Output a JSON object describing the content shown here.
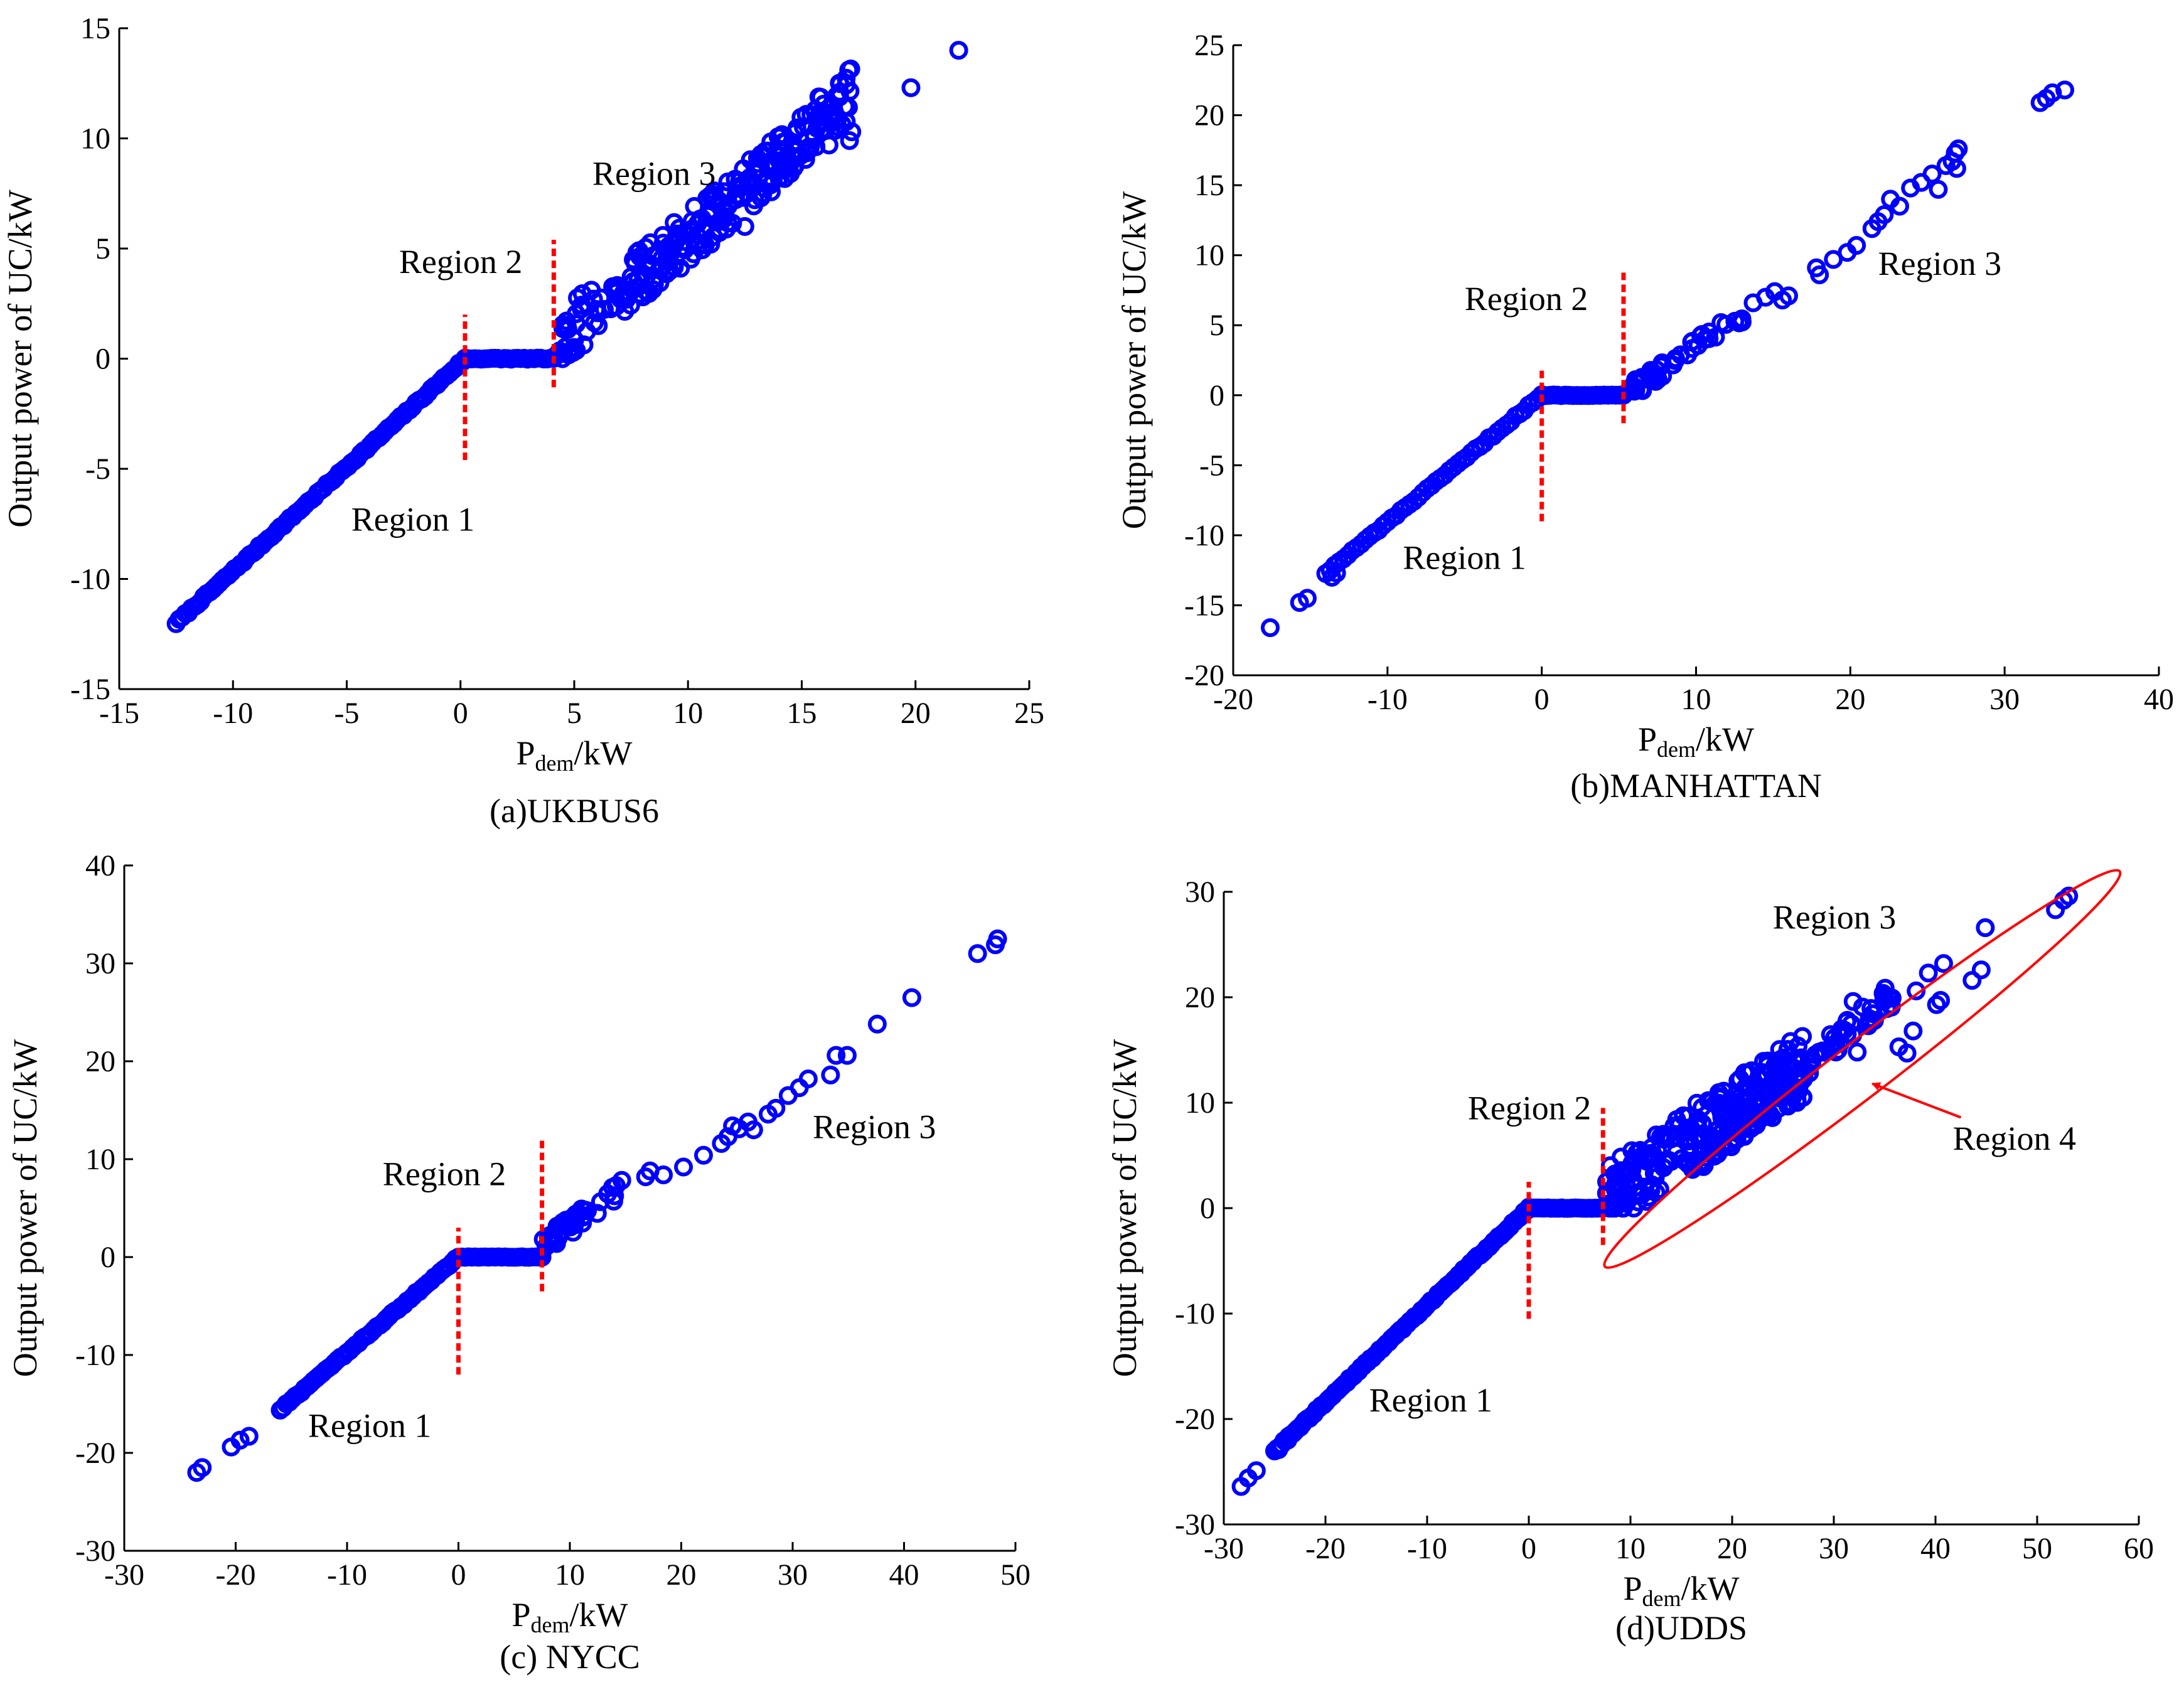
{
  "colors": {
    "marker": "#0000ff",
    "boundary": "#ff0000",
    "axis": "#000000",
    "background": "#ffffff"
  },
  "chart_data": [
    {
      "type": "scatter",
      "caption": "(a)UKBUS6",
      "xlabel_main": "P",
      "xlabel_sub": "dem",
      "xlabel_unit": "/kW",
      "ylabel": "Output power of UC/kW",
      "xlim": [
        -15,
        25
      ],
      "ylim": [
        -15,
        15
      ],
      "xticks": [
        -15,
        -10,
        -5,
        0,
        5,
        10,
        15,
        20,
        25
      ],
      "yticks": [
        -15,
        -10,
        -5,
        0,
        5,
        10,
        15
      ],
      "boundaries": [
        {
          "x": 0.2,
          "y0": -4.6,
          "y1": 2.0
        },
        {
          "x": 4.1,
          "y0": -1.3,
          "y1": 5.4
        }
      ],
      "regions": [
        {
          "label": "Region 1",
          "x": -4.8,
          "y": -7.3
        },
        {
          "label": "Region 2",
          "x": -2.7,
          "y": 4.4
        },
        {
          "label": "Region 3",
          "x": 5.8,
          "y": 8.4
        }
      ],
      "segments": [
        {
          "x0": -12.5,
          "y0": -12.0,
          "x1": 0.2,
          "y1": 0.0,
          "n": 95,
          "jitter": 0.12
        },
        {
          "x0": 0.2,
          "y0": 0.0,
          "x1": 4.1,
          "y1": 0.0,
          "n": 28,
          "jitter": 0.05
        }
      ],
      "clouds": [
        {
          "x0": 4.2,
          "x1": 17.2,
          "n": 260,
          "poly": [
            -2.0,
            0.65
          ],
          "curve": 0.01,
          "spread": 1.2,
          "seed": 11
        }
      ],
      "points": [
        [
          21.9,
          14.0
        ],
        [
          19.8,
          12.3
        ],
        [
          17.2,
          10.3
        ],
        [
          17.1,
          9.9
        ],
        [
          16.2,
          9.7
        ],
        [
          15.3,
          9.6
        ],
        [
          14.0,
          8.2
        ],
        [
          11.0,
          5.2
        ],
        [
          12.5,
          6.0
        ]
      ]
    },
    {
      "type": "scatter",
      "caption": "(b)MANHATTAN",
      "xlabel_main": "P",
      "xlabel_sub": "dem",
      "xlabel_unit": "/kW",
      "ylabel": "Output power of UC/kW",
      "xlim": [
        -20,
        40
      ],
      "ylim": [
        -20,
        25
      ],
      "xticks": [
        -20,
        -10,
        0,
        10,
        20,
        30,
        40
      ],
      "yticks": [
        -20,
        -15,
        -10,
        -5,
        0,
        5,
        10,
        15,
        20,
        25
      ],
      "boundaries": [
        {
          "x": 0.0,
          "y0": -9.0,
          "y1": 2.0
        },
        {
          "x": 5.3,
          "y0": -2.0,
          "y1": 9.0
        }
      ],
      "regions": [
        {
          "label": "Region 1",
          "x": -9.0,
          "y": -11.6
        },
        {
          "label": "Region 2",
          "x": -5.0,
          "y": 6.9
        },
        {
          "label": "Region 3",
          "x": 21.8,
          "y": 9.4
        }
      ],
      "segments": [
        {
          "x0": -14.0,
          "y0": -12.7,
          "x1": 0.0,
          "y1": 0.0,
          "n": 50,
          "jitter": 0.15
        },
        {
          "x0": 0.0,
          "y0": 0.0,
          "x1": 5.3,
          "y1": 0.0,
          "n": 22,
          "jitter": 0.05
        }
      ],
      "clouds": [
        {
          "x0": 5.5,
          "x1": 13.0,
          "n": 45,
          "poly": [
            -4.0,
            0.75
          ],
          "curve": 0.0,
          "spread": 0.6,
          "seed": 23
        }
      ],
      "points": [
        [
          -17.6,
          -16.6
        ],
        [
          -15.7,
          -14.8
        ],
        [
          -15.2,
          -14.5
        ],
        [
          -13.6,
          -13.0
        ],
        [
          -13.3,
          -12.7
        ],
        [
          13.7,
          6.6
        ],
        [
          14.5,
          7.0
        ],
        [
          15.1,
          7.4
        ],
        [
          15.6,
          6.8
        ],
        [
          16.0,
          7.1
        ],
        [
          17.8,
          9.1
        ],
        [
          18.0,
          8.6
        ],
        [
          18.9,
          9.7
        ],
        [
          19.8,
          10.2
        ],
        [
          20.4,
          10.7
        ],
        [
          21.4,
          11.9
        ],
        [
          21.8,
          12.4
        ],
        [
          22.2,
          12.9
        ],
        [
          22.6,
          14.0
        ],
        [
          23.2,
          13.5
        ],
        [
          23.9,
          14.8
        ],
        [
          24.6,
          15.2
        ],
        [
          25.3,
          15.8
        ],
        [
          25.7,
          14.7
        ],
        [
          26.2,
          16.4
        ],
        [
          26.6,
          16.7
        ],
        [
          26.8,
          17.3
        ],
        [
          26.9,
          16.2
        ],
        [
          27.0,
          17.6
        ],
        [
          32.3,
          20.9
        ],
        [
          32.7,
          21.2
        ],
        [
          33.1,
          21.6
        ],
        [
          33.9,
          21.8
        ]
      ]
    },
    {
      "type": "scatter",
      "caption": "(c) NYCC",
      "xlabel_main": "P",
      "xlabel_sub": "dem",
      "xlabel_unit": "/kW",
      "ylabel": "Output power of UC/kW",
      "xlim": [
        -30,
        50
      ],
      "ylim": [
        -30,
        40
      ],
      "xticks": [
        -30,
        -20,
        -10,
        0,
        10,
        20,
        30,
        40,
        50
      ],
      "yticks": [
        -30,
        -20,
        -10,
        0,
        10,
        20,
        30,
        40
      ],
      "boundaries": [
        {
          "x": 0.0,
          "y0": -12.0,
          "y1": 3.0
        },
        {
          "x": 7.5,
          "y0": -3.5,
          "y1": 12.0
        }
      ],
      "regions": [
        {
          "label": "Region 1",
          "x": -13.5,
          "y": -17.2
        },
        {
          "label": "Region 2",
          "x": -6.8,
          "y": 8.5
        },
        {
          "label": "Region 3",
          "x": 31.8,
          "y": 13.3
        }
      ],
      "segments": [
        {
          "x0": -16.0,
          "y0": -15.6,
          "x1": 0.0,
          "y1": 0.0,
          "n": 60,
          "jitter": 0.2
        },
        {
          "x0": 0.0,
          "y0": 0.0,
          "x1": 7.5,
          "y1": 0.0,
          "n": 26,
          "jitter": 0.05
        }
      ],
      "clouds": [
        {
          "x0": 7.5,
          "x1": 16.0,
          "n": 45,
          "poly": [
            -5.0,
            0.82
          ],
          "curve": 0.0,
          "spread": 0.9,
          "seed": 37
        }
      ],
      "points": [
        [
          -23.5,
          -22.0
        ],
        [
          -23.0,
          -21.5
        ],
        [
          -20.4,
          -19.4
        ],
        [
          -19.6,
          -18.7
        ],
        [
          -18.8,
          -18.3
        ],
        [
          16.8,
          8.2
        ],
        [
          17.2,
          8.8
        ],
        [
          18.4,
          8.4
        ],
        [
          20.2,
          9.2
        ],
        [
          22.0,
          10.4
        ],
        [
          23.6,
          11.6
        ],
        [
          24.2,
          12.3
        ],
        [
          24.6,
          13.4
        ],
        [
          25.2,
          13.1
        ],
        [
          26.0,
          13.8
        ],
        [
          26.5,
          13.0
        ],
        [
          27.8,
          14.6
        ],
        [
          28.5,
          15.2
        ],
        [
          29.6,
          16.5
        ],
        [
          30.6,
          17.3
        ],
        [
          31.4,
          18.2
        ],
        [
          33.4,
          18.6
        ],
        [
          33.9,
          20.6
        ],
        [
          34.9,
          20.6
        ],
        [
          37.6,
          23.8
        ],
        [
          40.7,
          26.5
        ],
        [
          46.6,
          31.0
        ],
        [
          48.2,
          31.9
        ],
        [
          48.4,
          32.5
        ]
      ]
    },
    {
      "type": "scatter",
      "caption": "(d)UDDS",
      "xlabel_main": "P",
      "xlabel_sub": "dem",
      "xlabel_unit": "/kW",
      "ylabel": "Output power of UC/kW",
      "xlim": [
        -30,
        60
      ],
      "ylim": [
        -30,
        30
      ],
      "xticks": [
        -30,
        -20,
        -10,
        0,
        10,
        20,
        30,
        40,
        50,
        60
      ],
      "yticks": [
        -30,
        -20,
        -10,
        0,
        10,
        20,
        30
      ],
      "boundaries": [
        {
          "x": 0.0,
          "y0": -10.5,
          "y1": 2.5
        },
        {
          "x": 7.3,
          "y0": -3.5,
          "y1": 9.5
        }
      ],
      "regions": [
        {
          "label": "Region 1",
          "x": -15.7,
          "y": -18.2
        },
        {
          "label": "Region 2",
          "x": -6.0,
          "y": 9.5
        },
        {
          "label": "Region 3",
          "x": 24.0,
          "y": 27.6
        },
        {
          "label": "Region 4",
          "x": 41.7,
          "y": 6.6
        }
      ],
      "region4": {
        "ellipse": {
          "cx": 32.8,
          "cy": 13.2,
          "rx": 31.5,
          "ry": 3.6,
          "angle": 36.5
        },
        "arrow": {
          "x0": 42.5,
          "y0": 8.6,
          "x1": 33.8,
          "y1": 11.8
        }
      },
      "segments": [
        {
          "x0": -25.0,
          "y0": -23.0,
          "x1": 0.0,
          "y1": 0.0,
          "n": 110,
          "jitter": 0.2
        },
        {
          "x0": 0.0,
          "y0": 0.0,
          "x1": 7.3,
          "y1": 0.0,
          "n": 28,
          "jitter": 0.05
        }
      ],
      "clouds": [
        {
          "x0": 7.5,
          "x1": 27.0,
          "n": 240,
          "poly": [
            -4.0,
            0.65
          ],
          "curve": 0.0,
          "spread": 3.2,
          "seed": 53
        },
        {
          "x0": 16.0,
          "x1": 36.0,
          "n": 90,
          "poly": [
            -9.0,
            0.82
          ],
          "curve": 0.0,
          "spread": 1.2,
          "seed": 71
        }
      ],
      "points": [
        [
          -28.3,
          -26.4
        ],
        [
          -27.6,
          -25.6
        ],
        [
          -26.8,
          -24.9
        ],
        [
          -24.6,
          -22.9
        ],
        [
          -23.7,
          -22.0
        ],
        [
          32.3,
          14.8
        ],
        [
          33.4,
          17.3
        ],
        [
          34.0,
          17.8
        ],
        [
          31.9,
          19.6
        ],
        [
          36.4,
          15.3
        ],
        [
          37.2,
          14.7
        ],
        [
          37.8,
          16.8
        ],
        [
          38.1,
          20.6
        ],
        [
          39.3,
          22.3
        ],
        [
          40.1,
          19.3
        ],
        [
          40.5,
          19.7
        ],
        [
          40.8,
          23.2
        ],
        [
          43.6,
          21.6
        ],
        [
          44.5,
          22.6
        ],
        [
          44.9,
          26.6
        ],
        [
          51.8,
          28.3
        ],
        [
          52.6,
          29.2
        ],
        [
          53.1,
          29.6
        ]
      ]
    }
  ]
}
